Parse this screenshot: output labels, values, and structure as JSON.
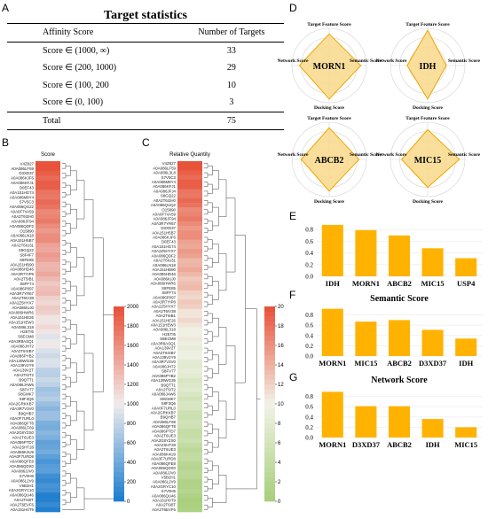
{
  "panel_labels": {
    "a": "A",
    "b": "B",
    "c": "C",
    "d": "D",
    "e": "E",
    "f": "F",
    "g": "G"
  },
  "table": {
    "title": "Target statistics",
    "headers": [
      "Affinity Score",
      "Number of Targets"
    ],
    "rows": [
      [
        "Score ∈ (1000, ∞)",
        "33"
      ],
      [
        "Score ∈ (200, 1000)",
        "29"
      ],
      [
        "Score ∈ (100, 200",
        "10"
      ],
      [
        "Score ∈ (0, 100)",
        "3"
      ]
    ],
    "total": [
      "Total",
      "75"
    ]
  },
  "heatmaps": {
    "b": {
      "header": "Score",
      "colorbar_ticks": [
        "2000",
        "1800",
        "1600",
        "1400",
        "1200",
        "1000",
        "800",
        "600",
        "400",
        "200",
        "0"
      ],
      "colors": {
        "high": "#e8533b",
        "mid": "#f0ecec",
        "low": "#1f7fcf"
      },
      "row_labels": [
        "V4Z827",
        "A0A086LF59",
        "D3XD37",
        "A0A086KJF6",
        "A0A086KFJ1",
        "D0EF43",
        "A0A151HG74",
        "A0A086M8Y4",
        "S7V5C3",
        "A0A086QG22",
        "A0A0F7VA59",
        "A0A2T6I2H0",
        "A0A086JF94",
        "A0A086QDF2",
        "O15890",
        "A0A086LN18",
        "A0A151H5B7",
        "A0A2T6IU31",
        "S8GQ22",
        "S8F4F7",
        "S8FE85",
        "A0A151HB90",
        "A0A086HD46",
        "A0A3R7YIP8",
        "A0A2T5IB1",
        "S8FF74",
        "A0A086P097",
        "A0A3R7YR67",
        "A0A2T6IV38",
        "A0A2Z5HYX7",
        "A0A086IUJ0",
        "A0A086HWR6",
        "A0A151HE26",
        "A0A151HEW3",
        "A0A086L318",
        "H2ETI5",
        "S8EGM8",
        "A0A3R8ASQ1",
        "A0A086JH72",
        "A0A2T6IXB7",
        "A0A086PYB2",
        "A0A139WG35",
        "A0A139V2Y9",
        "A0A139V2T",
        "A0A2T6IT2",
        "B9QTT1",
        "A0A086JAW6",
        "S8FV77",
        "S8GMK7",
        "S8F3Q6",
        "A0A2GRKKB7",
        "A0A3R7V3V0",
        "B9QHB7",
        "A0A0F7URL0",
        "A0A086QFT8",
        "A0A086LF69",
        "A0A2G8YZS0",
        "A0A2T6UE3",
        "A0A086PTD7",
        "A0A2SHT28",
        "A0A086K4U9",
        "A0A0F7URD8",
        "A0A086QFE8",
        "A0A086QDX0",
        "A0A086JJV0",
        "S7V0H6",
        "A0A086L2V9",
        "V5B2H1",
        "A0A2GRYC10",
        "A0A086QU46",
        "A0A2T6I0T",
        "A0A2T6EVF6",
        "A0A151H0T9"
      ]
    },
    "c": {
      "header": "Relative Quantity",
      "colorbar_ticks": [
        "20",
        "18",
        "16",
        "14",
        "12",
        "10",
        "8",
        "6",
        "4",
        "2",
        "0"
      ],
      "colors": {
        "high": "#e8533b",
        "mid": "#f2f2e8",
        "low": "#a8cf7c"
      },
      "row_labels": [
        "V4Z827",
        "A0A086LF59",
        "A0A086L3L8",
        "S7V5C3",
        "A0A086M8Y4",
        "A0A086KFJ1",
        "A0A086JFJ4",
        "S8GQ22",
        "A0A2T6I2H0",
        "A0A086QUQ2",
        "O15890",
        "A0A0F7VA59",
        "A0A086JF94",
        "A0A3R7YR67",
        "D3XD37",
        "A0A151H5B7",
        "A0A086KJF6",
        "D0EF43",
        "A0A151HG74",
        "A0A2Z5HYX7",
        "A0A086QDF2",
        "A0A2T6IU31",
        "A0A086LN18",
        "A0A151HB90",
        "A0A086HD46",
        "A0A086IUJ0",
        "A0A086HWR6",
        "S8FE85",
        "S8FF74",
        "A0A086P097",
        "A0A3R7YIP8",
        "A0A2Z5HYX7",
        "A0A2T6IV38",
        "A0A2T6IB1",
        "A0A151HE26",
        "A0A151HEW3",
        "A0A086L318",
        "H2ETI5",
        "S8EGM8",
        "A0A3R8ASQ1",
        "A0A139V2T",
        "A0A2T6IXB7",
        "A0A139V2Y9",
        "A0A3R7V3V0",
        "A0A086JH72",
        "S8FV77",
        "A0A086PYB2",
        "A0A139WG35",
        "B9QTT1",
        "A0A2T6IT2",
        "A0A086JAW6",
        "S8GMK7",
        "S8F3Q6",
        "A0A0F7URL0",
        "A0A2GRKKB7",
        "B9QHB7",
        "A0A086LF69",
        "A0A086QFT8",
        "A0A086PTD7",
        "A0A2T6UE3",
        "A0A2G8YZS0",
        "A0A2SHT28",
        "A0A2T6UE3",
        "A0A086K4U9",
        "A0A0F7URD8",
        "A0A086QFE8",
        "A0A086QDX0",
        "A0A086JJV0",
        "V5B2H1",
        "A0A086L2V9",
        "A0A2GRYC10",
        "S7V0H6",
        "A0A086QU46",
        "A0A151H0T9",
        "A0A2T6I0T",
        "A0A2T6EVF6"
      ]
    }
  },
  "radar": {
    "axes": {
      "top": "Target Feature Score",
      "left": "Network Score",
      "right": "Semantic Score",
      "bottom": "Docking Score"
    },
    "colors": {
      "fill": "#f9d98b",
      "stroke": "#f0a500",
      "grid": "#d3d3d3"
    },
    "targets": [
      {
        "name": "MORN1",
        "values": [
          0.85,
          0.85,
          0.9,
          0.8
        ]
      },
      {
        "name": "IDH",
        "values": [
          0.95,
          0.5,
          0.9,
          0.55
        ]
      },
      {
        "name": "ABCB2",
        "values": [
          0.85,
          0.8,
          0.85,
          0.75
        ]
      },
      {
        "name": "MIC15",
        "values": [
          0.8,
          0.85,
          0.75,
          0.7
        ]
      }
    ]
  },
  "chart_data": [
    {
      "type": "bar",
      "title": "",
      "categories": [
        "IDH",
        "MORN1",
        "ABCB2",
        "MIC15",
        "USP4"
      ],
      "values": [
        0.88,
        0.79,
        0.7,
        0.48,
        0.31
      ],
      "ylim": [
        0,
        1
      ],
      "yticks": [
        "0.0",
        "0.2",
        "0.4",
        "0.6",
        "0.8"
      ],
      "color": "#ffb300"
    },
    {
      "type": "bar",
      "title": "Semantic Score",
      "categories": [
        "MORN1",
        "MIC15",
        "ABCB2",
        "D3XD37",
        "IDH"
      ],
      "values": [
        0.92,
        0.67,
        0.7,
        0.51,
        0.34
      ],
      "ylim": [
        0,
        1
      ],
      "yticks": [
        "0.0",
        "0.2",
        "0.4",
        "0.6",
        "0.8"
      ],
      "color": "#ffb300"
    },
    {
      "type": "bar",
      "title": "Network Score",
      "categories": [
        "MORN1",
        "D3XD37",
        "ABCB2",
        "IDH",
        "MIC15"
      ],
      "values": [
        0.89,
        0.61,
        0.61,
        0.36,
        0.2
      ],
      "ylim": [
        0,
        1
      ],
      "yticks": [
        "0.0",
        "0.2",
        "0.4",
        "0.6",
        "0.8"
      ],
      "color": "#ffb300"
    }
  ]
}
